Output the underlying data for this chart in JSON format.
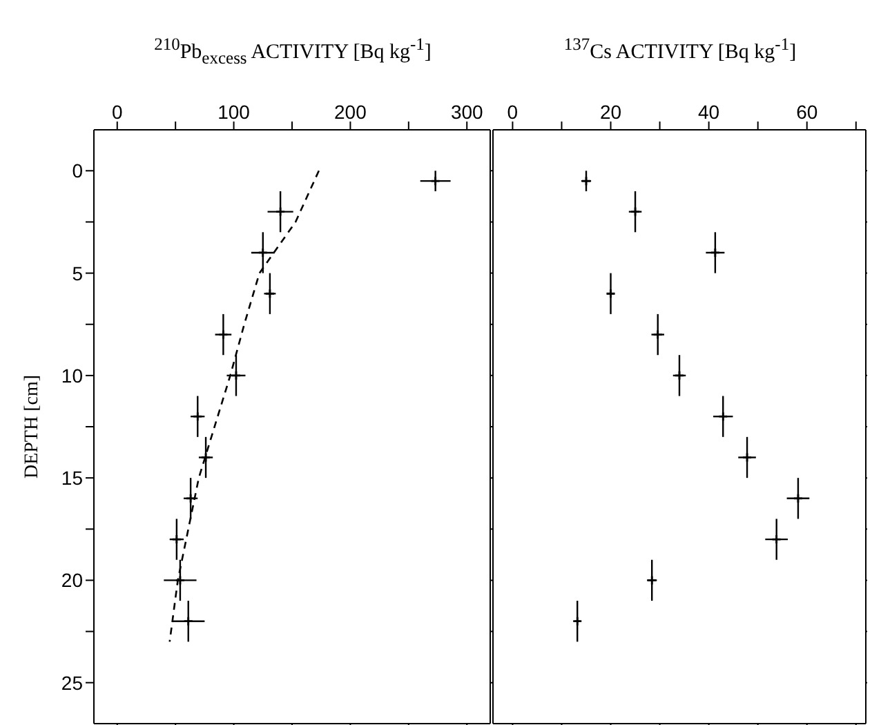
{
  "chart_data": [
    {
      "type": "scatter",
      "xlabel": "$^{210}$Pb$_{excess}$ ACTIVITY [Bq kg$^{-1}$]",
      "ylabel": "DEPTH [cm]",
      "xlim": [
        -20,
        320
      ],
      "xticks": [
        0,
        {
          "value": 50,
          "label": null
        },
        100,
        {
          "value": 150,
          "label": null
        },
        200,
        {
          "value": 250,
          "label": null
        },
        300
      ],
      "ylim": [
        27,
        -2
      ],
      "yticks": [
        0,
        {
          "value": 2.5,
          "label": null
        },
        5,
        {
          "value": 7.5,
          "label": null
        },
        10,
        {
          "value": 12.5,
          "label": null
        },
        15,
        {
          "value": 17.5,
          "label": null
        },
        20,
        {
          "value": 22.5,
          "label": null
        },
        25
      ],
      "marker": "cross",
      "series": [
        {
          "color": "#000000",
          "x": [
            273,
            140,
            125,
            131,
            91,
            102,
            69,
            76,
            63,
            51,
            54,
            61
          ],
          "values": [
            0.5,
            2,
            4,
            6,
            8,
            10,
            12,
            14,
            16,
            18,
            20,
            22
          ],
          "errors": [
            0.5,
            1,
            1,
            1,
            1,
            1,
            1,
            1,
            1,
            1,
            1,
            1
          ],
          "xerrors": [
            13,
            11,
            10,
            5,
            7,
            8,
            6,
            6,
            6,
            6,
            14,
            14
          ]
        },
        {
          "type": "line",
          "marker": "none",
          "color": "#000000",
          "line_style": "dashed",
          "x": [
            173,
            153,
            122,
            109,
            97,
            70,
            52,
            45
          ],
          "values": [
            0,
            2.5,
            5,
            7.5,
            10,
            15,
            20,
            23
          ]
        }
      ]
    },
    {
      "type": "scatter",
      "xlabel": "$^{137}$Cs ACTIVITY [Bq kg$^{-1}$]",
      "xlim": [
        -4,
        72
      ],
      "xticks": [
        0,
        {
          "value": 10,
          "label": null
        },
        20,
        {
          "value": 30,
          "label": null
        },
        40,
        {
          "value": 50,
          "label": null
        },
        60,
        {
          "value": 70,
          "label": null
        }
      ],
      "ylim": [
        27,
        -2
      ],
      "yticks": [
        0,
        {
          "value": 2.5,
          "label": null
        },
        5,
        {
          "value": 7.5,
          "label": null
        },
        10,
        {
          "value": 12.5,
          "label": null
        },
        15,
        {
          "value": 17.5,
          "label": null
        },
        20,
        {
          "value": 22.5,
          "label": null
        },
        25
      ],
      "tick_labels": "x",
      "marker": "cross",
      "series": [
        {
          "color": "#000000",
          "x": [
            15,
            25,
            41.3,
            20,
            29.6,
            34,
            42.9,
            47.8,
            58.2,
            53.8,
            28.4,
            13.2
          ],
          "values": [
            0.5,
            2,
            4,
            6,
            8,
            10,
            12,
            14,
            16,
            18,
            20,
            22
          ],
          "errors": [
            0.5,
            1,
            1,
            1,
            1,
            1,
            1,
            1,
            1,
            1,
            1,
            1
          ],
          "xerrors": [
            1,
            1.3,
            1.9,
            0.8,
            1.3,
            1.3,
            2,
            1.8,
            2.3,
            2.3,
            1,
            0.5
          ]
        }
      ]
    }
  ]
}
